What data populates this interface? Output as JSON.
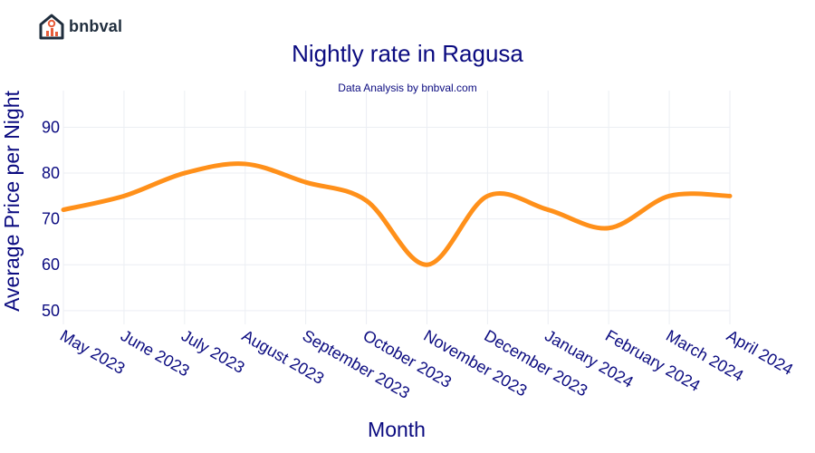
{
  "brand": {
    "name": "bnbval",
    "logo_icon": "house-chart-icon",
    "accent": "#e85d3a"
  },
  "chart_data": {
    "type": "line",
    "title": "Nightly rate in Ragusa",
    "subtitle": "Data Analysis by bnbval.com",
    "xlabel": "Month",
    "ylabel": "Average Price per Night",
    "categories": [
      "May 2023",
      "June 2023",
      "July 2023",
      "August 2023",
      "September 2023",
      "October 2023",
      "November 2023",
      "December 2023",
      "January 2024",
      "February 2024",
      "March 2024",
      "April 2024"
    ],
    "series": [
      {
        "values": [
          72,
          75,
          80,
          82,
          78,
          74,
          60,
          75,
          72,
          68,
          75,
          75
        ],
        "color": "#ff901a"
      }
    ],
    "yticks": [
      50,
      60,
      70,
      80,
      90
    ],
    "ylim": [
      47,
      98
    ],
    "grid": true,
    "legend": "none"
  }
}
